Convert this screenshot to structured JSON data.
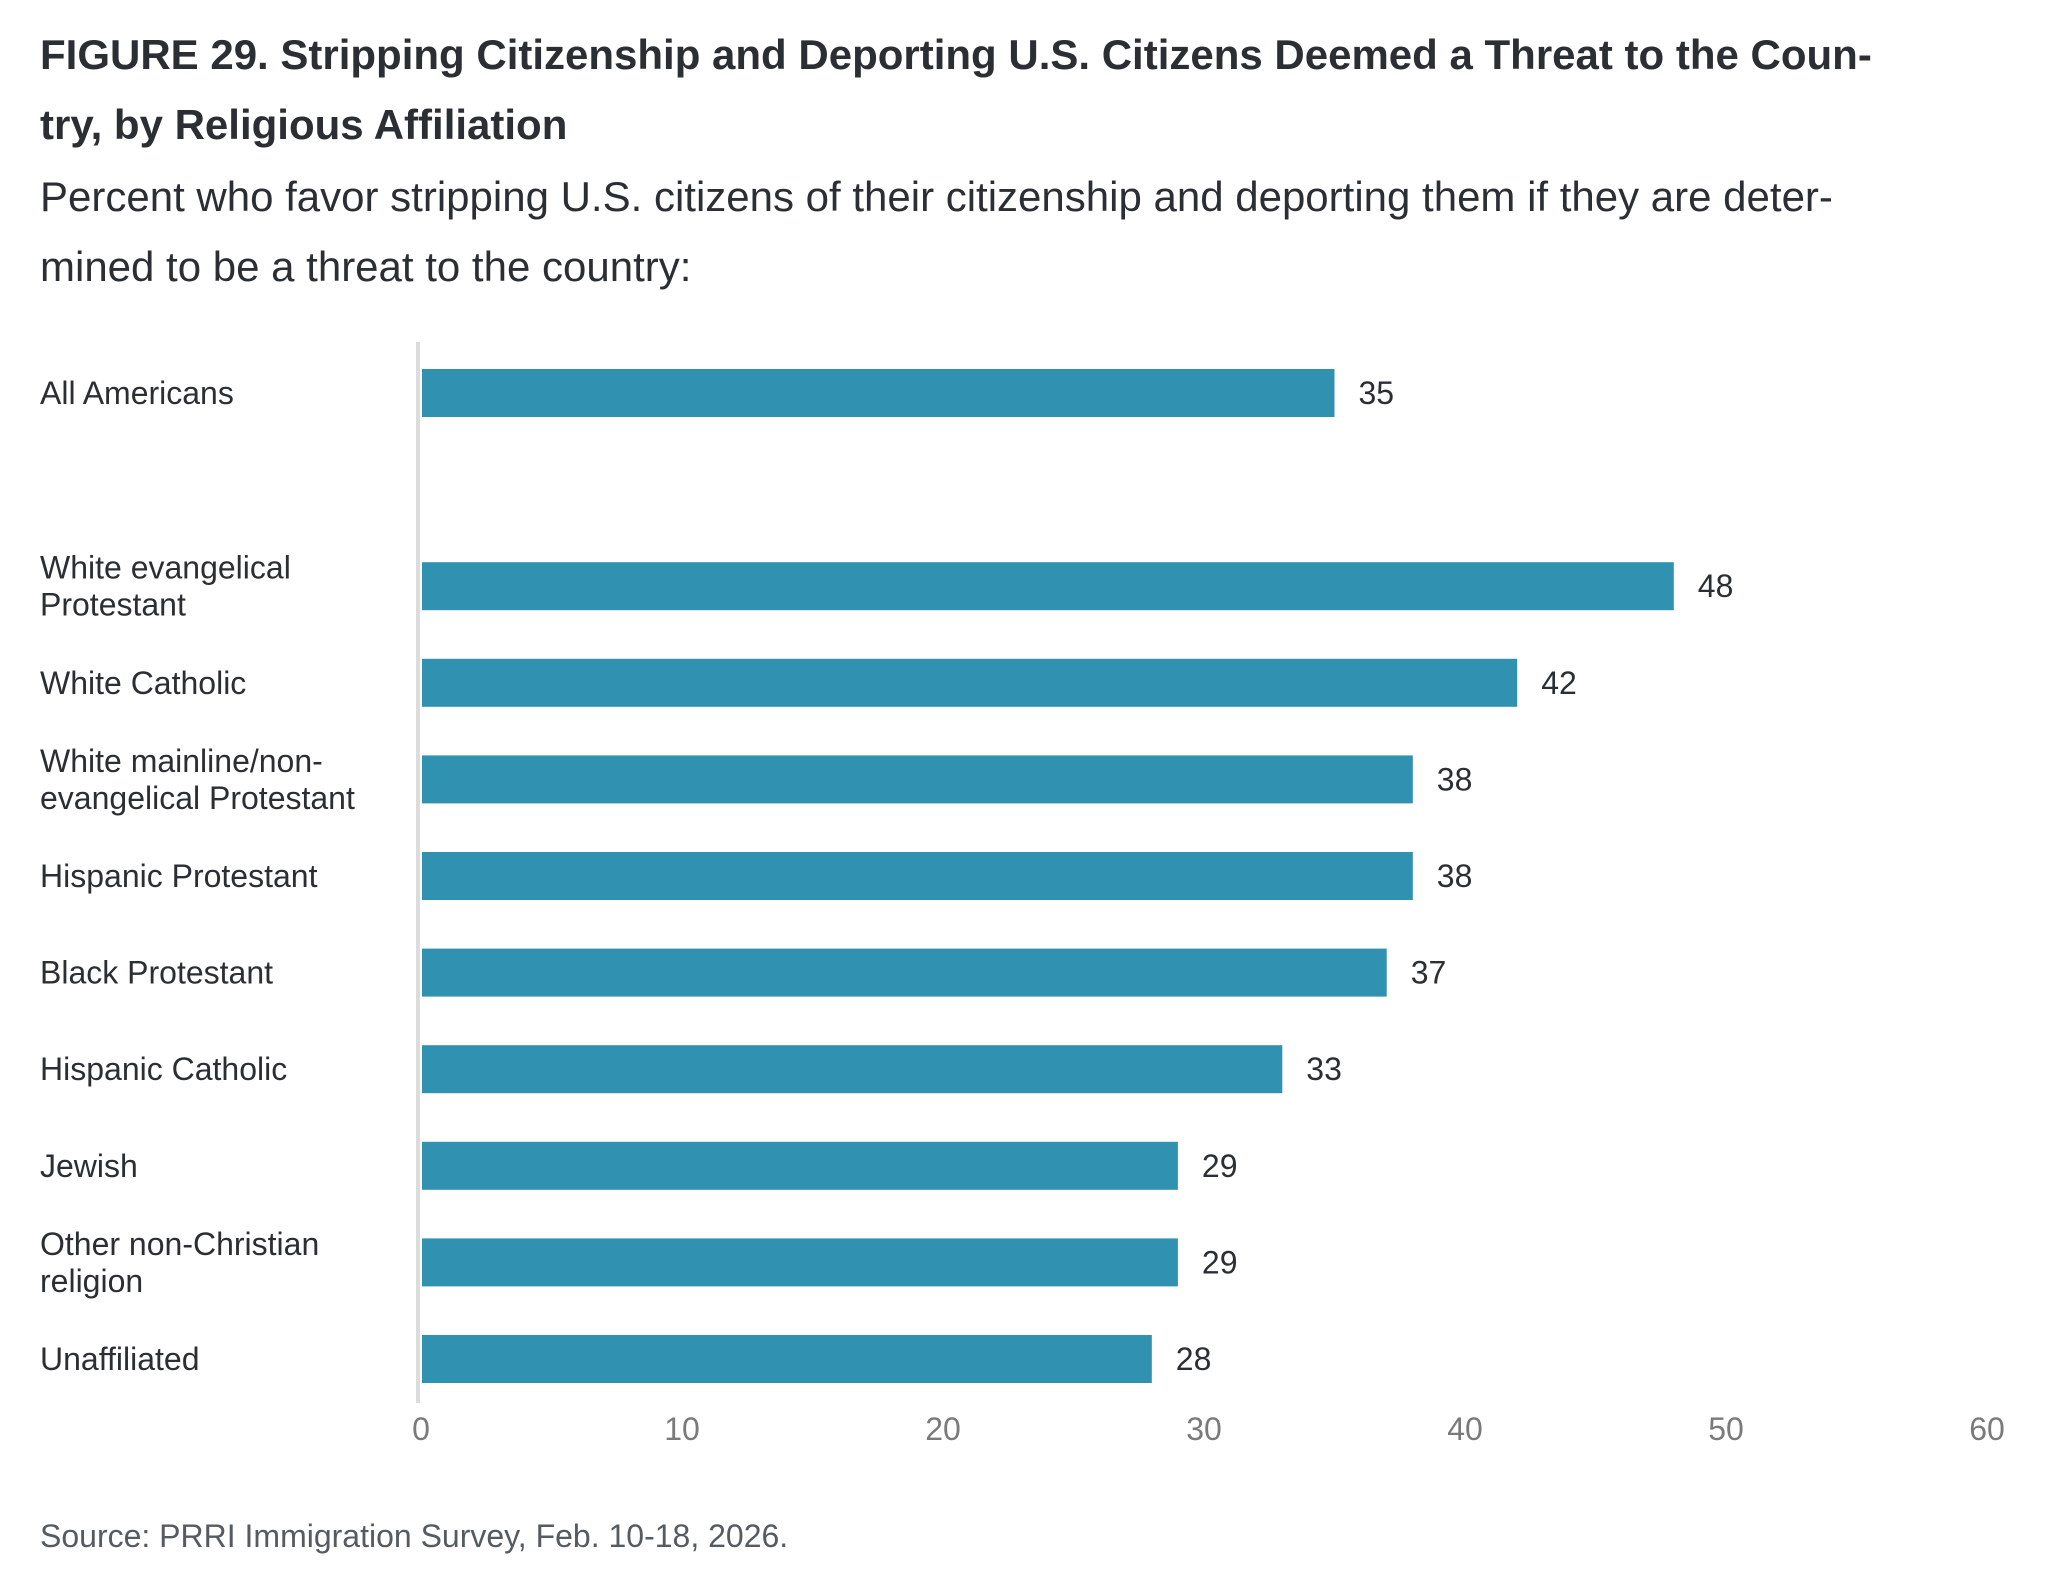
{
  "header": {
    "title": "FIGURE 29.  Stripping Citizenship and Deporting U.S. Citizens Deemed a Threat to the Coun- try, by Religious Affiliation",
    "title_lines": [
      "FIGURE 29.  Stripping Citizenship and Deporting U.S. Citizens Deemed a Threat to the Coun-",
      "try, by Religious Affiliation"
    ],
    "subtitle_lines": [
      "Percent who favor stripping U.S. citizens of their citizenship and deporting them if they are deter-",
      "mined to be a threat to the country:"
    ]
  },
  "footer": {
    "source": "Source: PRRI Immigration Survey, Feb. 10-18, 2026."
  },
  "colors": {
    "bar": "#3191b0",
    "axis_line": "#dcdcdc",
    "tick_label": "#7a7a7a",
    "text": "#2b2e33"
  },
  "chart_data": {
    "type": "bar",
    "orientation": "horizontal",
    "title": "FIGURE 29.  Stripping Citizenship and Deporting U.S. Citizens Deemed a Threat to the Country, by Religious Affiliation",
    "subtitle": "Percent who favor stripping U.S. citizens of their citizenship and deporting them if they are determined to be a threat to the country:",
    "xlabel": "",
    "ylabel": "",
    "xlim": [
      0,
      60
    ],
    "xticks": [
      0,
      10,
      20,
      30,
      40,
      50,
      60
    ],
    "grid": false,
    "legend": "none",
    "categories": [
      "All Americans",
      "",
      "White evangelical Protestant",
      "White Catholic",
      "White mainline/non-evangelical Protestant",
      "Hispanic Protestant",
      "Black Protestant",
      "Hispanic Catholic",
      "Jewish",
      "Other non-Christian religion",
      "Unaffiliated"
    ],
    "category_lines": [
      [
        "All Americans"
      ],
      [],
      [
        "White evangelical",
        "Protestant"
      ],
      [
        "White Catholic"
      ],
      [
        "White mainline/non-",
        "evangelical Protestant"
      ],
      [
        "Hispanic Protestant"
      ],
      [
        "Black Protestant"
      ],
      [
        "Hispanic Catholic"
      ],
      [
        "Jewish"
      ],
      [
        "Other non-Christian",
        "religion"
      ],
      [
        "Unaffiliated"
      ]
    ],
    "values": [
      35,
      null,
      48,
      42,
      38,
      38,
      37,
      33,
      29,
      29,
      28
    ],
    "data_labels": [
      "35",
      "",
      "48",
      "42",
      "38",
      "38",
      "37",
      "33",
      "29",
      "29",
      "28"
    ]
  }
}
